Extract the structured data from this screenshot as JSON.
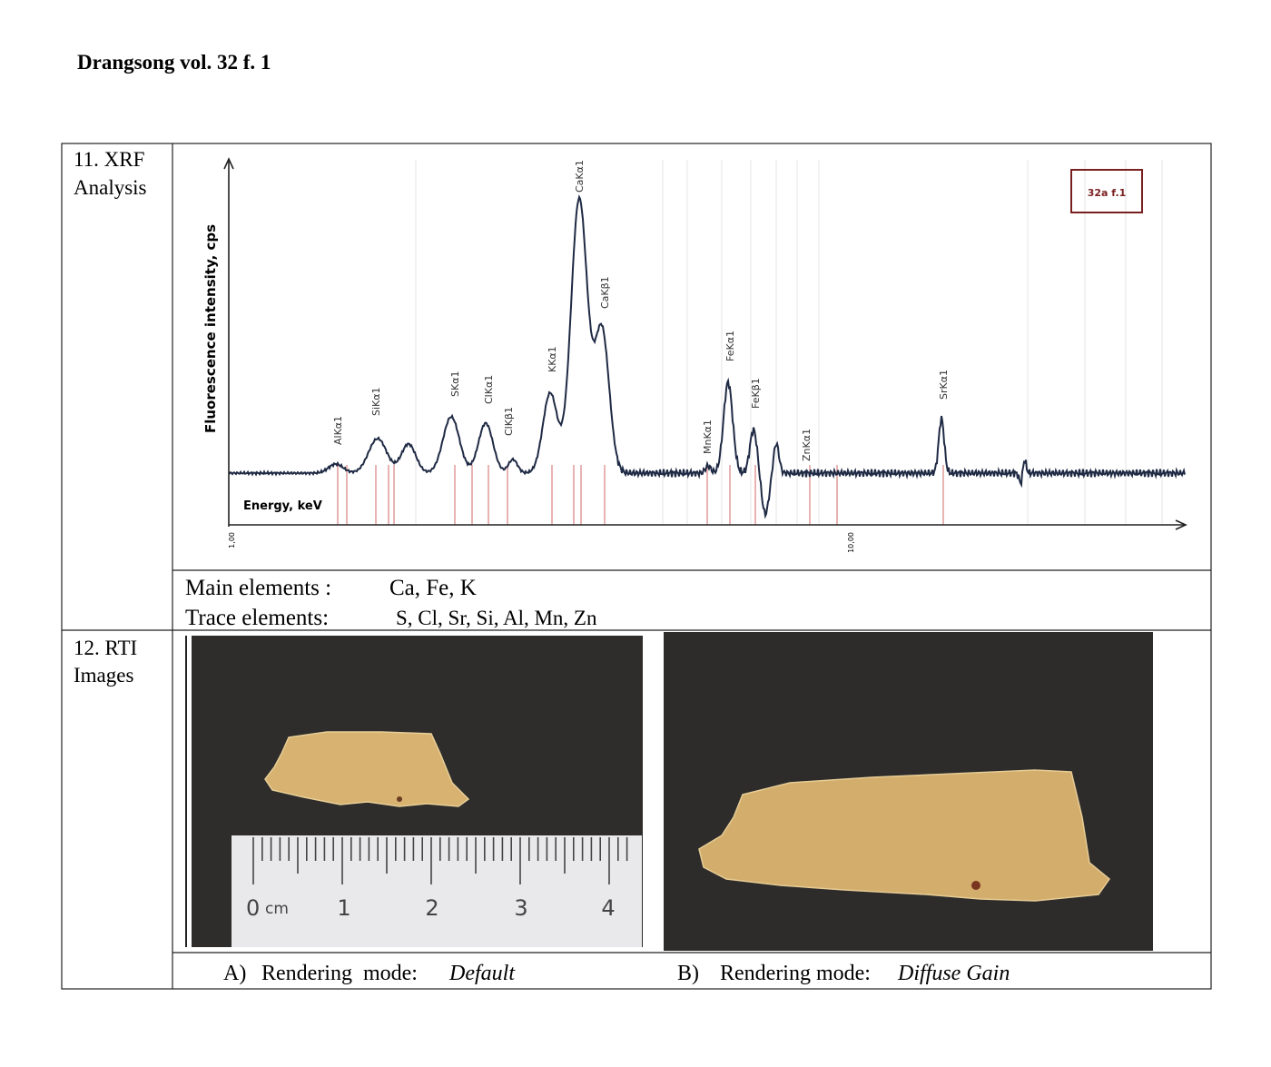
{
  "header": {
    "title": "Drangsong vol. 32 f. 1"
  },
  "table": {
    "rows": [
      {
        "label": [
          "11. XRF",
          "Analysis"
        ],
        "figure": {
          "y_axis_label": "Fluorescence intensity, cps",
          "x_axis_label": "Energy, keV",
          "legend": "32a f.1",
          "x_tick_labels": [
            "1,00",
            "10,00"
          ],
          "peak_labels": [
            "AlKα1",
            "SiKα1",
            "SKα1",
            "ClKα1",
            "ClKβ1",
            "KKα1",
            "CaKα1",
            "CaKβ1",
            "MnKα1",
            "FeKα1",
            "FeKβ1",
            "ZnKα1",
            "SrKα1"
          ]
        },
        "main_elements": {
          "label": "Main elements :",
          "value": "Ca, Fe, K"
        },
        "trace_elements": {
          "label": "Trace elements:",
          "value": "S, Cl, Sr, Si, Al, Mn, Zn"
        }
      },
      {
        "label": [
          "12. RTI",
          "Images"
        ],
        "images": [
          {
            "ruler_labels": [
              "0",
              "cm",
              "1",
              "2",
              "3",
              "4"
            ],
            "marker": "A)",
            "caption": "Rendering  mode:",
            "mode": "Default"
          },
          {
            "marker": "B)",
            "caption": "Rendering mode:",
            "mode": "Diffuse Gain"
          }
        ]
      }
    ]
  }
}
